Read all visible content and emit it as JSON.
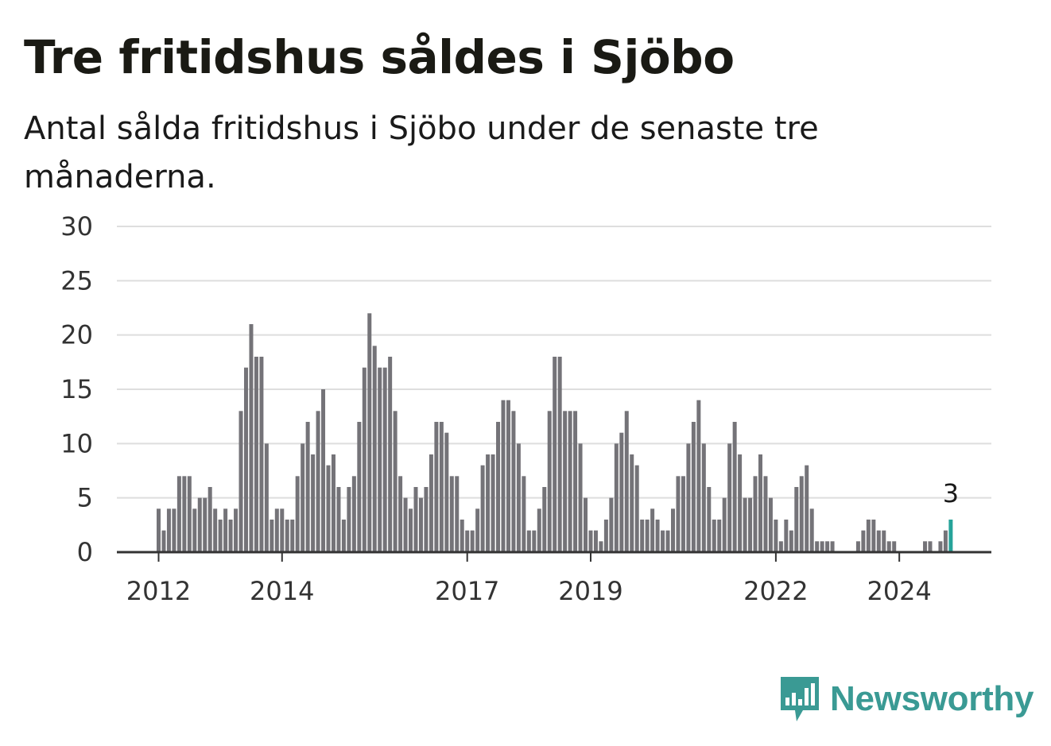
{
  "title": "Tre fritidshus såldes i Sjöbo",
  "subtitle": "Antal sålda fritidshus i Sjöbo under de senaste tre månaderna.",
  "brand": {
    "name": "Newsworthy",
    "color": "#3a9a94",
    "icon": "newsworthy-logo-icon"
  },
  "colors": {
    "bar": "#747378",
    "highlight": "#26a39a",
    "grid": "#dedede",
    "axis": "#333333"
  },
  "chart_data": {
    "type": "bar",
    "title": "Tre fritidshus såldes i Sjöbo",
    "subtitle": "Antal sålda fritidshus i Sjöbo under de senaste tre månaderna.",
    "xlabel": "",
    "ylabel": "",
    "ylim": [
      0,
      30
    ],
    "yticks": [
      0,
      5,
      10,
      15,
      20,
      25,
      30
    ],
    "xtick_labels": [
      "2012",
      "2014",
      "2017",
      "2019",
      "2022",
      "2024"
    ],
    "grid": true,
    "series": [
      {
        "values": [
          4,
          2,
          4,
          4,
          7,
          7,
          7,
          4,
          5,
          5,
          6,
          4,
          3,
          4,
          3,
          4,
          13,
          17,
          21,
          18,
          18,
          10,
          3,
          4,
          4,
          3,
          3,
          7,
          10,
          12,
          9,
          13,
          15,
          8,
          9,
          6,
          3,
          6,
          7,
          12,
          17,
          22,
          19,
          17,
          17,
          18,
          13,
          7,
          5,
          4,
          6,
          5,
          6,
          9,
          12,
          12,
          11,
          7,
          7,
          3,
          2,
          2,
          4,
          8,
          9,
          9,
          12,
          14,
          14,
          13,
          10,
          7,
          2,
          2,
          4,
          6,
          13,
          18,
          18,
          13,
          13,
          13,
          10,
          5,
          2,
          2,
          1,
          3,
          5,
          10,
          11,
          13,
          9,
          8,
          3,
          3,
          4,
          3,
          2,
          2,
          4,
          7,
          7,
          10,
          12,
          14,
          10,
          6,
          3,
          3,
          5,
          10,
          12,
          9,
          5,
          5,
          7,
          9,
          7,
          5,
          3,
          1,
          3,
          2,
          6,
          7,
          8,
          4,
          1,
          1,
          1,
          1,
          0,
          0,
          0,
          0,
          1,
          2,
          3,
          3,
          2,
          2,
          1,
          1,
          0,
          0,
          0,
          0,
          0,
          1,
          1,
          0,
          1,
          2,
          3
        ]
      }
    ],
    "highlight": {
      "value": 3,
      "label": "3"
    }
  }
}
